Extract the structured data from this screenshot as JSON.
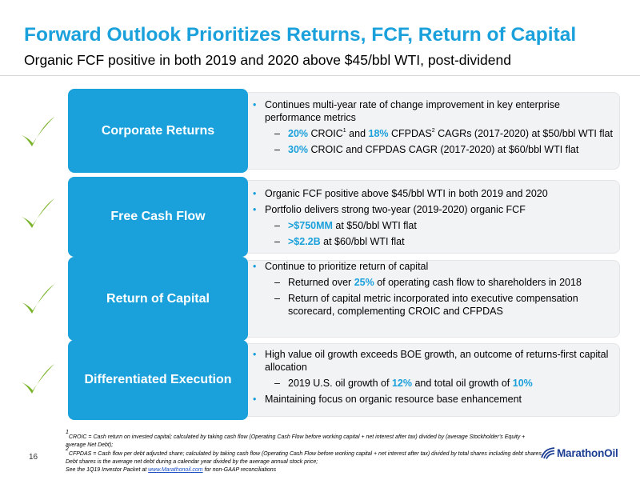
{
  "title": "Forward Outlook Prioritizes Returns, FCF, Return of Capital",
  "subtitle": "Organic FCF positive in both 2019 and 2020 above $45/bbl WTI, post-dividend",
  "colors": {
    "accent": "#1aa0db",
    "check": "#7ab42b",
    "box": "#f2f3f5",
    "logo": "#1c3f94"
  },
  "icons": {
    "check": "checkmark-icon",
    "logo": "marathon-oil-logo-icon"
  },
  "sections": [
    {
      "label": "Corporate Returns",
      "b1": "Continues multi-year rate of change improvement in key enterprise performance metrics",
      "s1": {
        "v1": "20%",
        "t1": " CROIC",
        "fn1": "1",
        "t2": " and ",
        "v2": "18%",
        "t3": " CFPDAS",
        "fn2": "2",
        "t4": " CAGRs (2017-2020) at $50/bbl WTI flat"
      },
      "s2": {
        "v": "30%",
        "t": " CROIC and CFPDAS CAGR (2017-2020) at $60/bbl WTI flat"
      }
    },
    {
      "label": "Free Cash Flow",
      "b1": "Organic FCF positive above $45/bbl WTI in both 2019 and 2020",
      "b2": "Portfolio delivers strong two-year (2019-2020) organic FCF",
      "s1": {
        "v": ">$750MM",
        "t": " at $50/bbl WTI flat"
      },
      "s2": {
        "v": ">$2.2B",
        "t": " at $60/bbl WTI flat"
      }
    },
    {
      "label": "Return of Capital",
      "b1": "Continue to prioritize return of capital",
      "s1": {
        "t1": "Returned over ",
        "v": "25%",
        "t2": " of operating cash flow to shareholders in 2018"
      },
      "s2": "Return of capital metric incorporated into executive compensation scorecard, complementing CROIC and CFPDAS"
    },
    {
      "label": "Differentiated Execution",
      "b1": "High value oil growth exceeds BOE growth, an outcome of returns-first capital allocation",
      "s1": {
        "t1": "2019 U.S. oil growth of ",
        "v1": "12%",
        "t2": " and total oil growth of ",
        "v2": "10%"
      },
      "b2": "Maintaining focus on organic resource base enhancement"
    }
  ],
  "footnotes": {
    "fn1_num": "1",
    "fn1": "CROIC = Cash return on invested capital; calculated by taking cash flow (Operating Cash Flow before working capital + net interest after tax) divided by (average Stockholder’s Equity + average Net Debt);",
    "fn2_num": "2",
    "fn2": "CFPDAS = Cash flow per debt adjusted share; calculated by taking cash flow (Operating Cash Flow before working capital + net interest after tax) divided by total shares including debt shares. Debt shares is the average net debt during a calendar year divided by the average annual stock price;",
    "fn3_pre": "See the 1Q19 Investor Packet at ",
    "fn3_link": "www.Marathonoil.com",
    "fn3_post": " for non-GAAP reconciliations"
  },
  "page_number": "16",
  "logo_text": "MarathonOil"
}
